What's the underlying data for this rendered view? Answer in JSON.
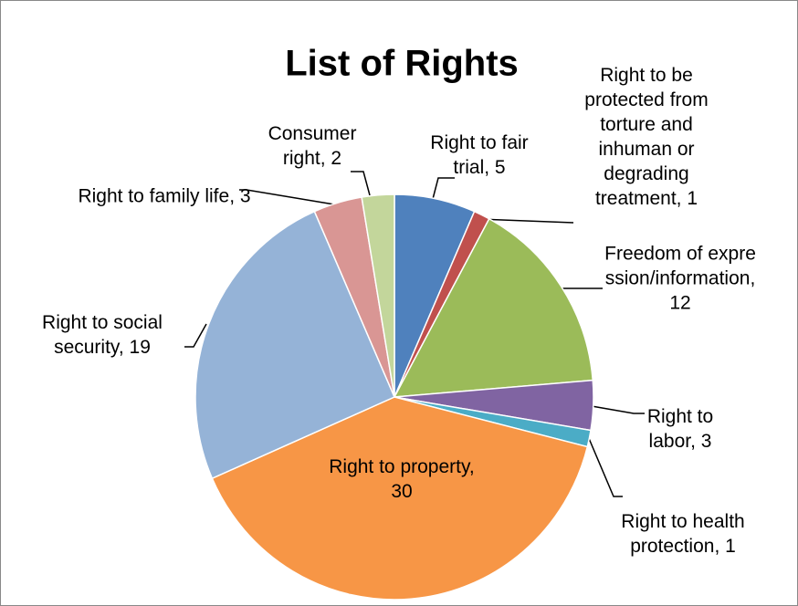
{
  "chart_data": {
    "type": "pie",
    "title": "List of Rights",
    "categories": [
      "Right to fair trial",
      "Right to be protected from torture and inhuman or degrading treatment",
      "Freedom of expression/information",
      "Right to labor",
      "Right to health protection",
      "Right to property",
      "Right to social security",
      "Right to family life",
      "Consumer right"
    ],
    "values": [
      5,
      1,
      12,
      3,
      1,
      30,
      19,
      3,
      2
    ],
    "colors": [
      "#4f81bd",
      "#c0504d",
      "#9bbb59",
      "#8064a2",
      "#4bacc6",
      "#f79646",
      "#95b3d7",
      "#d99694",
      "#c3d69b"
    ],
    "label_separator": ", "
  }
}
